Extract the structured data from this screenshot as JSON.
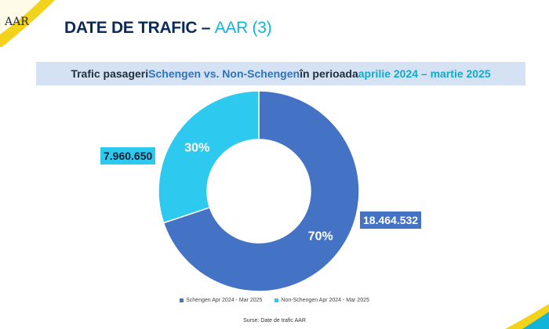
{
  "header": {
    "title_main": "DATE DE TRAFIC – ",
    "title_accent": "AAR (3)"
  },
  "logo": {
    "text": "AAR"
  },
  "banner": {
    "part1": "Trafic pasageri ",
    "part2": "Schengen vs. Non-Schengen",
    "part3": " în perioada ",
    "part4": "aprilie 2024 – martie 2025"
  },
  "colors": {
    "schengen": "#4472c4",
    "non_schengen": "#2ec9ef",
    "title_navy": "#0b2a57",
    "accent_teal": "#12b4d8",
    "banner_bg": "#d5e2f3"
  },
  "chart_data": {
    "type": "pie",
    "donut": true,
    "series": [
      {
        "name": "Schengen Apr 2024 - Mar 2025",
        "value": 18464532,
        "value_label": "18.464.532",
        "percent_label": "70%"
      },
      {
        "name": "Non-Schengen Apr 2024 - Mar 2025",
        "value": 7960650,
        "value_label": "7.960.650",
        "percent_label": "30%"
      }
    ],
    "legend_position": "bottom"
  },
  "source": "Surse: Date de trafic AAR"
}
